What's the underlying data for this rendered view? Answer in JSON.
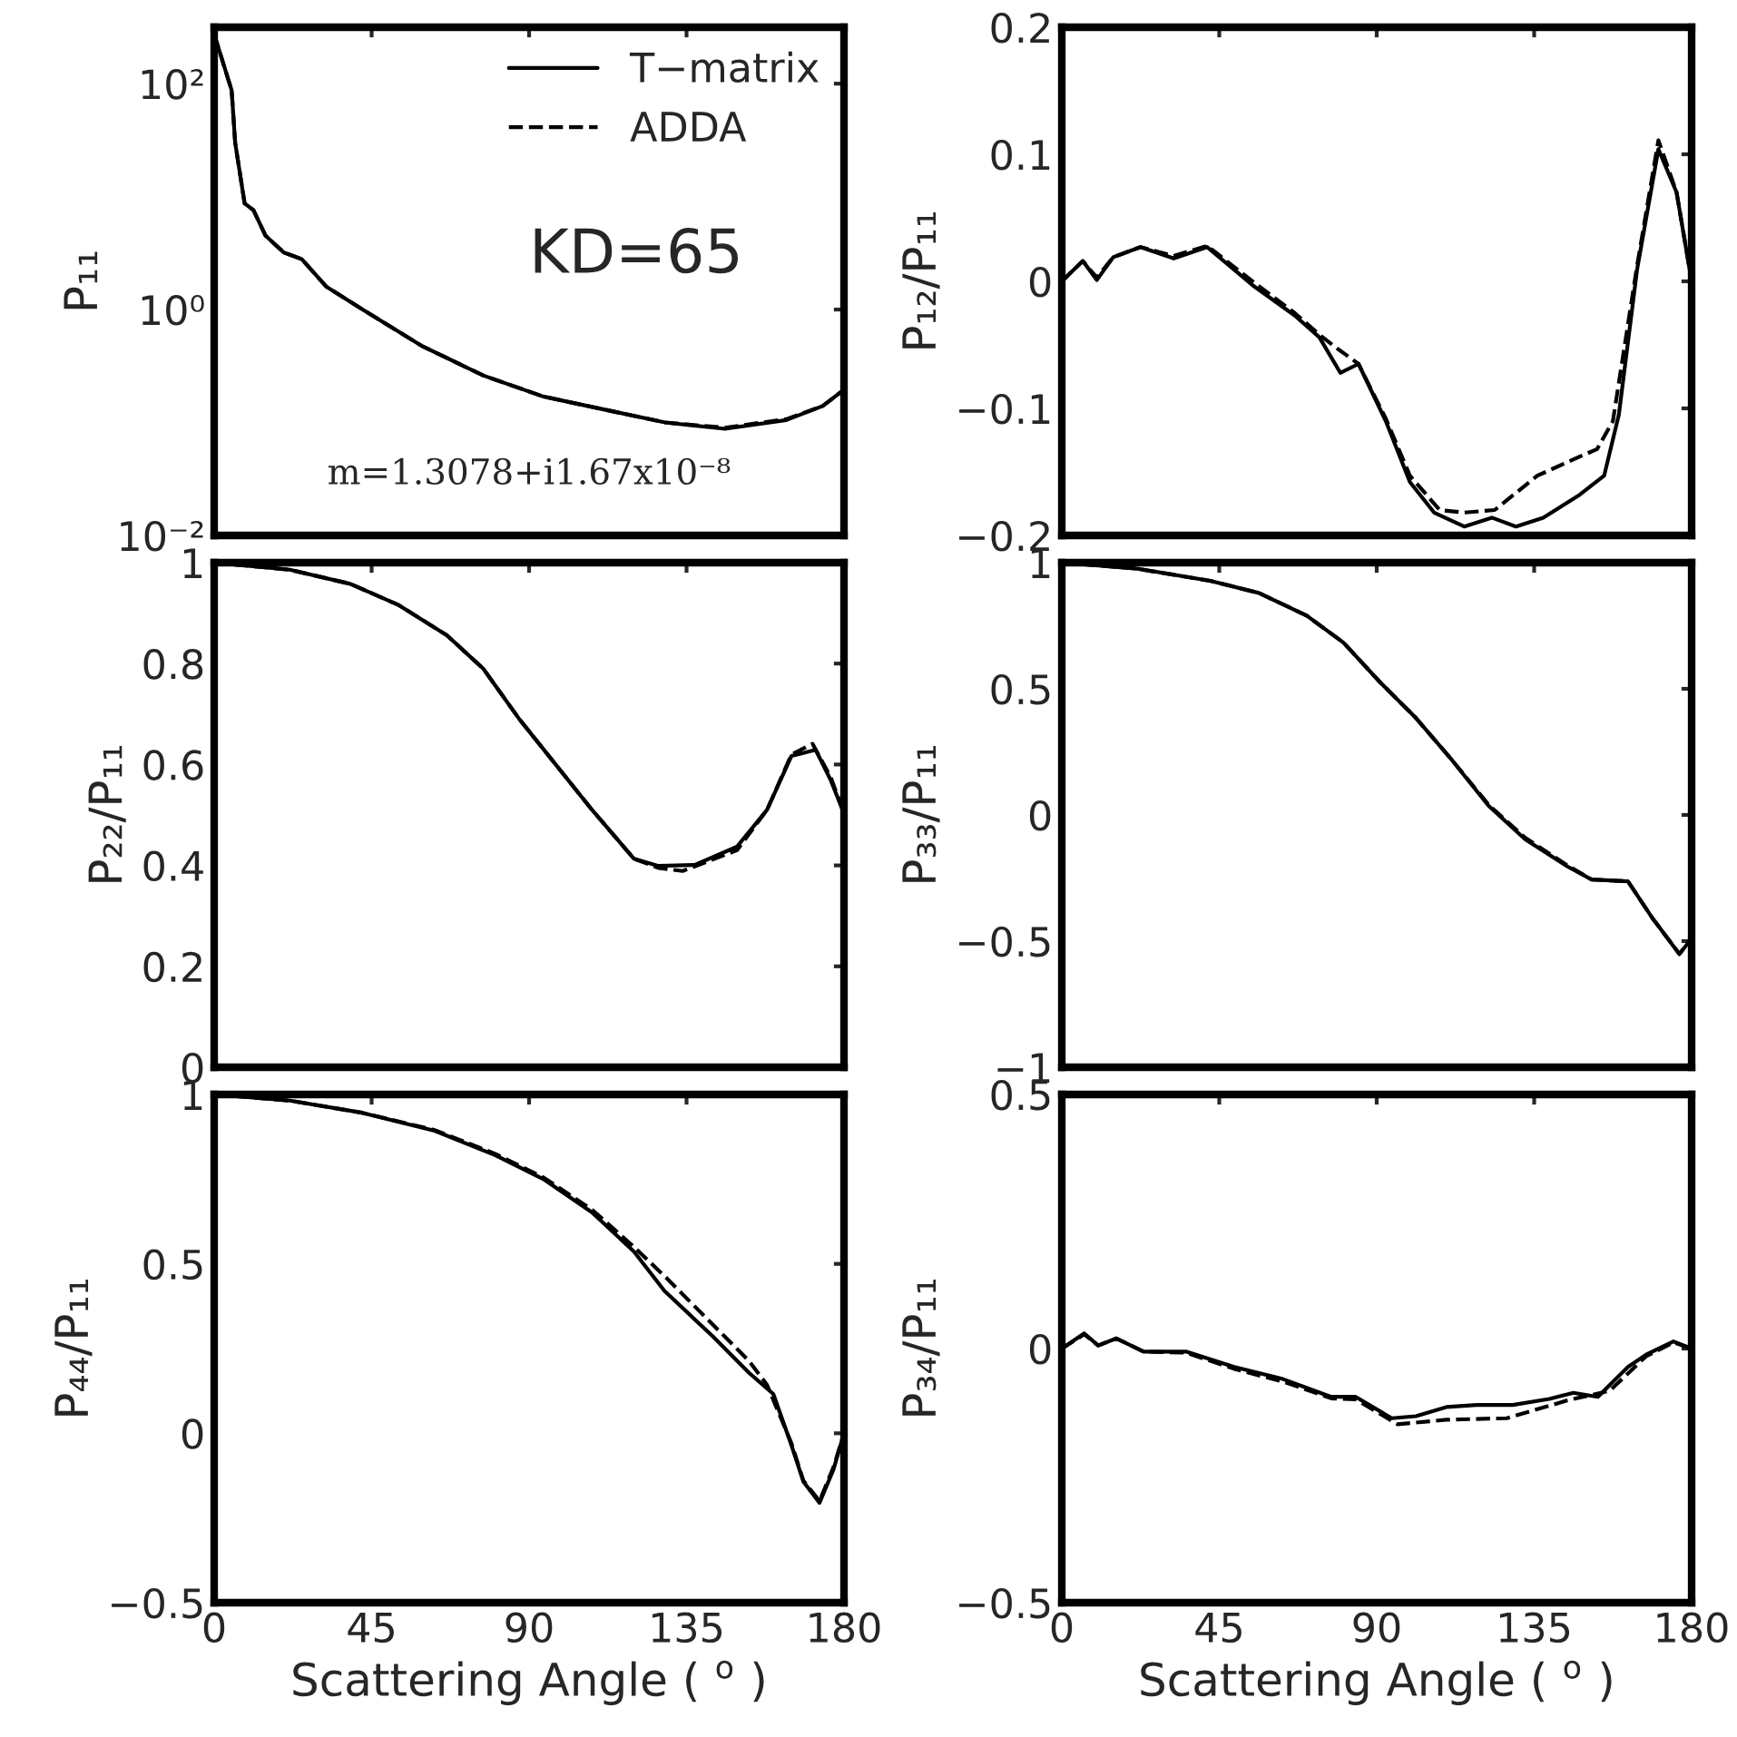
{
  "chart_data": [
    {
      "type": "line",
      "ylabel": "P₁₁",
      "log": "y",
      "xlim": [
        0,
        180
      ],
      "xticks": [
        0,
        45,
        90,
        135,
        180
      ],
      "ylim": [
        0.01,
        316
      ],
      "yticks": [
        {
          "value": 0.01,
          "label": "10⁻²"
        },
        {
          "value": 1,
          "label": "10⁰"
        },
        {
          "value": 100,
          "label": "10²"
        }
      ],
      "tick_labels": "y",
      "legend": "top right",
      "grid": false,
      "annotations": [
        "KD=65",
        "m=1.3078+i1.67x10⁻⁸"
      ],
      "series": [
        {
          "name": "T−matrix",
          "color": "#000000",
          "line_style": "solid",
          "x": [
            0,
            5,
            6,
            8.7,
            11.2,
            14.7,
            19.9,
            25,
            32,
            42.4,
            59.7,
            77,
            94,
            111.6,
            128.9,
            146,
            163.5,
            173.9,
            180
          ],
          "values": [
            275,
            87,
            30,
            8.7,
            7.6,
            4.5,
            3.2,
            2.8,
            1.6,
            1,
            0.47,
            0.26,
            0.17,
            0.13,
            0.1,
            0.088,
            0.105,
            0.14,
            0.195
          ]
        },
        {
          "name": "ADDA",
          "color": "#000000",
          "line_style": "dashed",
          "x": [
            0,
            5,
            6,
            8.7,
            11.2,
            14.7,
            19.9,
            25,
            32,
            42.4,
            59.7,
            77,
            94,
            111.6,
            128.9,
            146,
            163.5,
            173.9,
            180
          ],
          "values": [
            275,
            87,
            30,
            8.7,
            7.6,
            4.5,
            3.2,
            2.8,
            1.6,
            1,
            0.47,
            0.26,
            0.17,
            0.13,
            0.1,
            0.09,
            0.107,
            0.14,
            0.195
          ]
        }
      ]
    },
    {
      "type": "line",
      "ylabel": "P₁₂/P₁₁",
      "xlim": [
        0,
        180
      ],
      "xticks": [
        0,
        45,
        90,
        135,
        180
      ],
      "ylim": [
        -0.2,
        0.2
      ],
      "yticks": [
        {
          "value": -0.2,
          "label": "−0.2"
        },
        {
          "value": -0.1,
          "label": "−0.1"
        },
        0,
        0.1,
        0.2
      ],
      "tick_labels": "y",
      "grid": false,
      "series": [
        {
          "color": "#000000",
          "line_style": "solid",
          "x": [
            0,
            6,
            10,
            14.7,
            22.5,
            32,
            41.5,
            54.5,
            66.6,
            73.6,
            79.6,
            84.8,
            92.6,
            99.5,
            106.4,
            115,
            122.9,
            129.8,
            137.6,
            148,
            155,
            159.2,
            164.4,
            170.5,
            175.7,
            180
          ],
          "values": [
            0,
            0.016,
            0.001,
            0.019,
            0.027,
            0.018,
            0.027,
            -0.003,
            -0.027,
            -0.044,
            -0.072,
            -0.065,
            -0.11,
            -0.158,
            -0.182,
            -0.193,
            -0.186,
            -0.193,
            -0.186,
            -0.168,
            -0.153,
            -0.105,
            0.009,
            0.104,
            0.07,
            0
          ]
        },
        {
          "color": "#000000",
          "line_style": "dashed",
          "x": [
            0,
            6,
            10,
            14.7,
            22.5,
            32,
            41.5,
            54.5,
            66.6,
            73.6,
            78.8,
            84.8,
            92.6,
            99.5,
            108,
            115,
            123.7,
            135.9,
            148,
            153,
            157.5,
            164.4,
            170.5,
            175.7,
            180
          ],
          "values": [
            0,
            0.016,
            0.003,
            0.019,
            0.027,
            0.02,
            0.028,
            0.0,
            -0.025,
            -0.042,
            -0.053,
            -0.065,
            -0.108,
            -0.153,
            -0.18,
            -0.182,
            -0.18,
            -0.153,
            -0.138,
            -0.132,
            -0.11,
            0.012,
            0.111,
            0.07,
            0
          ]
        }
      ]
    },
    {
      "type": "line",
      "ylabel": "P₂₂/P₁₁",
      "xlim": [
        0,
        180
      ],
      "xticks": [
        0,
        45,
        90,
        135,
        180
      ],
      "ylim": [
        0,
        1
      ],
      "yticks": [
        0,
        0.2,
        0.4,
        0.6,
        0.8,
        1
      ],
      "tick_labels": "y",
      "grid": false,
      "series": [
        {
          "color": "#000000",
          "line_style": "solid",
          "x": [
            0,
            21.6,
            38.9,
            52.7,
            66.5,
            76.9,
            87.2,
            97.6,
            108,
            120,
            127,
            137.3,
            149.4,
            158,
            165,
            171.9,
            176.2,
            180
          ],
          "values": [
            1.0,
            0.986,
            0.958,
            0.916,
            0.856,
            0.79,
            0.69,
            0.6,
            0.51,
            0.413,
            0.399,
            0.401,
            0.437,
            0.51,
            0.617,
            0.629,
            0.569,
            0.503
          ]
        },
        {
          "color": "#000000",
          "line_style": "dashed",
          "x": [
            0,
            21.6,
            38.9,
            52.7,
            66.5,
            76.9,
            87.2,
            97.6,
            108,
            120,
            127,
            133.9,
            149.4,
            158,
            165,
            171,
            176.2,
            180
          ],
          "values": [
            1.0,
            0.986,
            0.958,
            0.916,
            0.856,
            0.79,
            0.69,
            0.6,
            0.51,
            0.413,
            0.395,
            0.389,
            0.43,
            0.51,
            0.62,
            0.641,
            0.575,
            0.503
          ]
        }
      ]
    },
    {
      "type": "line",
      "ylabel": "P₃₃/P₁₁",
      "xlim": [
        0,
        180
      ],
      "xticks": [
        0,
        45,
        90,
        135,
        180
      ],
      "ylim": [
        -1,
        1
      ],
      "yticks": [
        {
          "value": -1,
          "label": "−1"
        },
        {
          "value": -0.5,
          "label": "−0.5"
        },
        0,
        0.5,
        1
      ],
      "tick_labels": "y",
      "grid": false,
      "series": [
        {
          "color": "#000000",
          "line_style": "solid",
          "x": [
            0,
            21.6,
            42.4,
            56.3,
            70,
            80.5,
            90.9,
            101.3,
            111.6,
            122,
            132.4,
            144.5,
            151.4,
            161.8,
            168.7,
            176.5,
            180
          ],
          "values": [
            1.0,
            0.976,
            0.928,
            0.88,
            0.79,
            0.683,
            0.527,
            0.383,
            0.216,
            0.036,
            -0.096,
            -0.204,
            -0.256,
            -0.263,
            -0.407,
            -0.551,
            -0.49
          ]
        },
        {
          "color": "#000000",
          "line_style": "dashed",
          "x": [
            0,
            21.6,
            42.4,
            56.3,
            70,
            80.5,
            90.9,
            101.3,
            111.6,
            122,
            132.4,
            144.5,
            151.4,
            161.8,
            168.7,
            176.5,
            180
          ],
          "values": [
            1.0,
            0.976,
            0.928,
            0.88,
            0.79,
            0.683,
            0.527,
            0.383,
            0.216,
            0.04,
            -0.09,
            -0.2,
            -0.256,
            -0.263,
            -0.407,
            -0.551,
            -0.49
          ]
        }
      ]
    },
    {
      "type": "line",
      "ylabel": "P₄₄/P₁₁",
      "xlabel": "Scattering Angle ( $^{o}$ )",
      "xlim": [
        0,
        180
      ],
      "xticks": [
        0,
        45,
        90,
        135,
        180
      ],
      "ylim": [
        -0.5,
        1
      ],
      "yticks": [
        {
          "value": -0.5,
          "label": "−0.5"
        },
        0,
        0.5,
        1
      ],
      "grid": false,
      "series": [
        {
          "color": "#000000",
          "line_style": "solid",
          "x": [
            0,
            21.6,
            42.3,
            63,
            80.3,
            94.1,
            108,
            120,
            128.7,
            142.5,
            152.8,
            159.8,
            165,
            168.4,
            173,
            177,
            180
          ],
          "values": [
            1.0,
            0.982,
            0.946,
            0.893,
            0.821,
            0.75,
            0.652,
            0.536,
            0.42,
            0.286,
            0.179,
            0.116,
            -0.036,
            -0.143,
            -0.205,
            -0.107,
            0
          ]
        },
        {
          "color": "#000000",
          "line_style": "dashed",
          "x": [
            0,
            21.6,
            42.3,
            63,
            80.3,
            94.1,
            108,
            120,
            128.7,
            142.5,
            152.8,
            158,
            165,
            168.4,
            173,
            177,
            180
          ],
          "values": [
            1.0,
            0.982,
            0.946,
            0.895,
            0.825,
            0.755,
            0.66,
            0.55,
            0.464,
            0.321,
            0.214,
            0.143,
            -0.03,
            -0.14,
            -0.2,
            -0.1,
            0
          ]
        }
      ]
    },
    {
      "type": "line",
      "ylabel": "P₃₄/P₁₁",
      "xlabel": "Scattering Angle ( $^{o}$ )",
      "xlim": [
        0,
        180
      ],
      "xticks": [
        0,
        45,
        90,
        135,
        180
      ],
      "ylim": [
        -0.5,
        0.5
      ],
      "yticks": [
        {
          "value": -0.5,
          "label": "−0.5"
        },
        0,
        0.5
      ],
      "grid": false,
      "series": [
        {
          "color": "#000000",
          "line_style": "solid",
          "x": [
            0,
            6.4,
            10.4,
            15.6,
            23.4,
            35.5,
            49.3,
            63.2,
            77,
            84,
            94.3,
            101.2,
            109.9,
            118.6,
            128.9,
            139.3,
            146.2,
            153.2,
            161.8,
            167,
            174.8,
            180
          ],
          "values": [
            0,
            0.03,
            0.006,
            0.02,
            -0.006,
            -0.006,
            -0.036,
            -0.06,
            -0.095,
            -0.095,
            -0.137,
            -0.133,
            -0.115,
            -0.111,
            -0.111,
            -0.099,
            -0.087,
            -0.095,
            -0.036,
            -0.012,
            0.014,
            0
          ]
        },
        {
          "color": "#000000",
          "line_style": "dashed",
          "x": [
            0,
            6.4,
            10.4,
            15.6,
            23.4,
            35.5,
            49.3,
            63.2,
            77,
            84,
            96,
            109.9,
            127.2,
            144.5,
            156.6,
            167,
            174.8,
            180
          ],
          "values": [
            0,
            0.028,
            0.006,
            0.02,
            -0.006,
            -0.008,
            -0.04,
            -0.065,
            -0.098,
            -0.1,
            -0.149,
            -0.14,
            -0.137,
            -0.102,
            -0.083,
            -0.015,
            0.012,
            0
          ]
        }
      ]
    }
  ]
}
